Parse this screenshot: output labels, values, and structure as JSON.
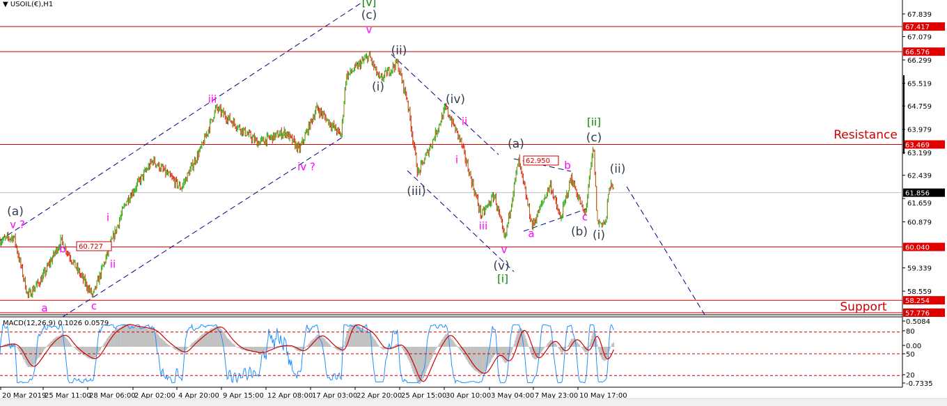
{
  "header": {
    "symbol_title": "USOIL(€),H1",
    "dropdown_icon": "triangle-down-icon"
  },
  "colors": {
    "bull": "#00b400",
    "bear": "#e60000",
    "body": "#b07818",
    "hline": "#cc0000",
    "trendline": "#000080",
    "current_price": "#c0c0c0",
    "wave_dark": "#2f3f4f",
    "wave_magenta": "#ff00ff",
    "wave_green": "#008000",
    "macd_hist": "#c0c0c0",
    "macd_signal": "#cc0000",
    "oscillator": "#1e90ff"
  },
  "chart_data": [
    {
      "type": "candlestick",
      "title": "USOIL(€),H1",
      "price_axis_ticks": [
        "67.839",
        "67.079",
        "66.299",
        "65.519",
        "64.759",
        "63.979",
        "63.199",
        "62.439",
        "61.659",
        "60.879",
        "59.339",
        "58.559"
      ],
      "ylim": [
        57.7,
        68.3
      ],
      "time_axis_ticks": [
        "20 Mar 2019",
        "25 Mar 11:00",
        "28 Mar 06:00",
        "2 Apr 02:00",
        "4 Apr 20:00",
        "9 Apr 15:00",
        "12 Apr 08:00",
        "17 Apr 03:00",
        "22 Apr 20:00",
        "25 Apr 15:00",
        "30 Apr 10:00",
        "3 May 04:00",
        "7 May 23:00",
        "10 May 17:00"
      ],
      "current_price": "61.856",
      "horizontal_levels": [
        "67.417",
        "66.576",
        "63.469",
        "60.040",
        "58.254",
        "57.776"
      ],
      "level_labels": {
        "resistance": "Resistance",
        "support": "Support"
      },
      "price_tags": [
        "60.727",
        "62.950"
      ],
      "price_swings": [
        {
          "t": "20 Mar 04:00",
          "p": 60.26
        },
        {
          "t": "21 Mar 21:00",
          "p": 60.38
        },
        {
          "t": "23 Mar 14:00",
          "p": 58.4
        },
        {
          "t": "25 Mar 07:00",
          "p": 58.98
        },
        {
          "t": "26 Mar 14:00",
          "p": 60.26
        },
        {
          "t": "27 Mar 13:00",
          "p": 59.33
        },
        {
          "t": "28 Mar 19:00",
          "p": 58.4
        },
        {
          "t": "30 Mar 11:00",
          "p": 59.91
        },
        {
          "t": "1 Apr 08:00",
          "p": 61.55
        },
        {
          "t": "3 Apr 08:00",
          "p": 62.94
        },
        {
          "t": "5 Apr 07:00",
          "p": 62.01
        },
        {
          "t": "7 Apr 13:00",
          "p": 63.41
        },
        {
          "t": "9 Apr 01:00",
          "p": 64.69
        },
        {
          "t": "10 Apr 13:00",
          "p": 64.11
        },
        {
          "t": "11 Apr 20:00",
          "p": 63.53
        },
        {
          "t": "14 Apr 10:00",
          "p": 63.88
        },
        {
          "t": "15 Apr 22:00",
          "p": 63.29
        },
        {
          "t": "17 Apr 22:00",
          "p": 64.69
        },
        {
          "t": "21 Apr 01:00",
          "p": 63.76
        },
        {
          "t": "21 Apr 16:00",
          "p": 65.74
        },
        {
          "t": "23 Apr 17:00",
          "p": 66.44
        },
        {
          "t": "24 Apr 09:00",
          "p": 65.62
        },
        {
          "t": "25 Apr 11:00",
          "p": 66.21
        },
        {
          "t": "26 Apr 11:00",
          "p": 64.93
        },
        {
          "t": "27 Apr 14:00",
          "p": 62.48
        },
        {
          "t": "29 Apr 02:00",
          "p": 63.53
        },
        {
          "t": "30 Apr 12:00",
          "p": 64.69
        },
        {
          "t": "1 May 09:00",
          "p": 63.64
        },
        {
          "t": "2 May 16:00",
          "p": 61.08
        },
        {
          "t": "3 May 17:00",
          "p": 61.78
        },
        {
          "t": "4 May 20:00",
          "p": 60.26
        },
        {
          "t": "6 May 08:00",
          "p": 62.94
        },
        {
          "t": "7 May 20:00",
          "p": 60.73
        },
        {
          "t": "9 May 00:00",
          "p": 62.13
        },
        {
          "t": "9 May 15:00",
          "p": 60.96
        },
        {
          "t": "10 May 07:00",
          "p": 62.36
        },
        {
          "t": "11 May 11:00",
          "p": 61.08
        },
        {
          "t": "12 May 09:00",
          "p": 63.41
        },
        {
          "t": "12 May 19:00",
          "p": 60.85
        },
        {
          "t": "13 May 17:00",
          "p": 60.85
        },
        {
          "t": "14 May 02:00",
          "p": 62.13
        },
        {
          "t": "14 May 15:00",
          "p": 61.9
        }
      ],
      "wave_labels": [
        {
          "text": "[v]",
          "style": "green"
        },
        {
          "text": "(c)",
          "style": "dark"
        },
        {
          "text": "v",
          "style": "magenta"
        },
        {
          "text": "(a)",
          "style": "dark"
        },
        {
          "text": "v ?",
          "style": "magenta"
        },
        {
          "text": "a",
          "style": "magenta"
        },
        {
          "text": "b",
          "style": "magenta"
        },
        {
          "text": "c",
          "style": "magenta"
        },
        {
          "text": "i",
          "style": "magenta"
        },
        {
          "text": "ii",
          "style": "magenta"
        },
        {
          "text": "iii",
          "style": "magenta"
        },
        {
          "text": "iv ?",
          "style": "magenta"
        },
        {
          "text": "(i)",
          "style": "dark"
        },
        {
          "text": "(ii)",
          "style": "dark"
        },
        {
          "text": "(iv)",
          "style": "dark"
        },
        {
          "text": "ii",
          "style": "magenta"
        },
        {
          "text": "i",
          "style": "magenta"
        },
        {
          "text": "(iii)",
          "style": "dark"
        },
        {
          "text": "iii",
          "style": "magenta"
        },
        {
          "text": "v",
          "style": "magenta"
        },
        {
          "text": "(v)",
          "style": "dark"
        },
        {
          "text": "[i]",
          "style": "green"
        },
        {
          "text": "(a)",
          "style": "dark"
        },
        {
          "text": "b",
          "style": "magenta"
        },
        {
          "text": "a",
          "style": "magenta"
        },
        {
          "text": "c",
          "style": "magenta"
        },
        {
          "text": "(b)",
          "style": "dark"
        },
        {
          "text": "(i)",
          "style": "dark"
        },
        {
          "text": "(c)",
          "style": "dark"
        },
        {
          "text": "[ii]",
          "style": "green"
        },
        {
          "text": "(ii)",
          "style": "dark"
        }
      ]
    },
    {
      "type": "line",
      "title": "MACD(12,26,9) 0.1026 0.0579",
      "axis_ticks": [
        "0.5084",
        "80",
        "0.00",
        "50",
        "20",
        "-0.7335"
      ],
      "ylim": [
        -0.7335,
        0.5084
      ],
      "oscillator_levels": [
        80,
        50,
        20
      ],
      "series": [
        {
          "name": "MACD",
          "kind": "histogram"
        },
        {
          "name": "Signal",
          "kind": "line"
        }
      ]
    }
  ]
}
